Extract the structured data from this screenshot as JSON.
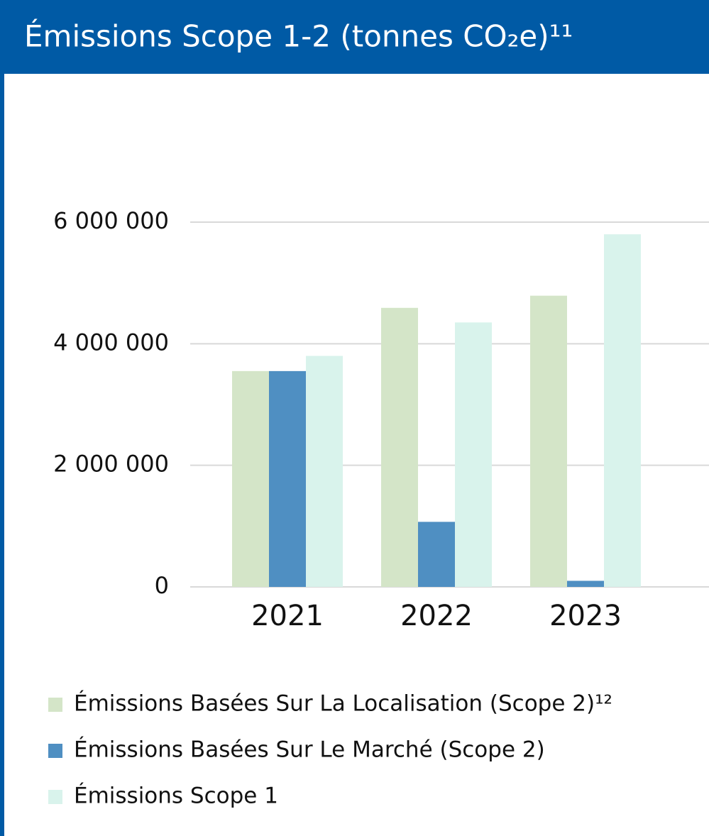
{
  "chart_data": {
    "type": "bar",
    "title": "Émissions Scope 1-2 (tonnes CO₂e)¹¹",
    "categories": [
      "2021",
      "2022",
      "2023"
    ],
    "series": [
      {
        "name": "Émissions Basées Sur La Localisation (Scope 2)¹²",
        "color": "#d4e5c8",
        "values": [
          3550000,
          4590000,
          4790000
        ]
      },
      {
        "name": "Émissions Basées Sur Le Marché (Scope 2)",
        "color": "#4f8fc2",
        "values": [
          3550000,
          1070000,
          100000
        ]
      },
      {
        "name": "Émissions Scope 1",
        "color": "#d9f3ec",
        "values": [
          3800000,
          4350000,
          5800000
        ]
      }
    ],
    "ylim": [
      0,
      6000000
    ],
    "yticks": [
      0,
      {
        "value": 2000000,
        "label": "2 000 000"
      },
      {
        "value": 4000000,
        "label": "4 000 000"
      },
      {
        "value": 6000000,
        "label": "6 000 000"
      }
    ],
    "grid": true,
    "legend": "bottom"
  }
}
